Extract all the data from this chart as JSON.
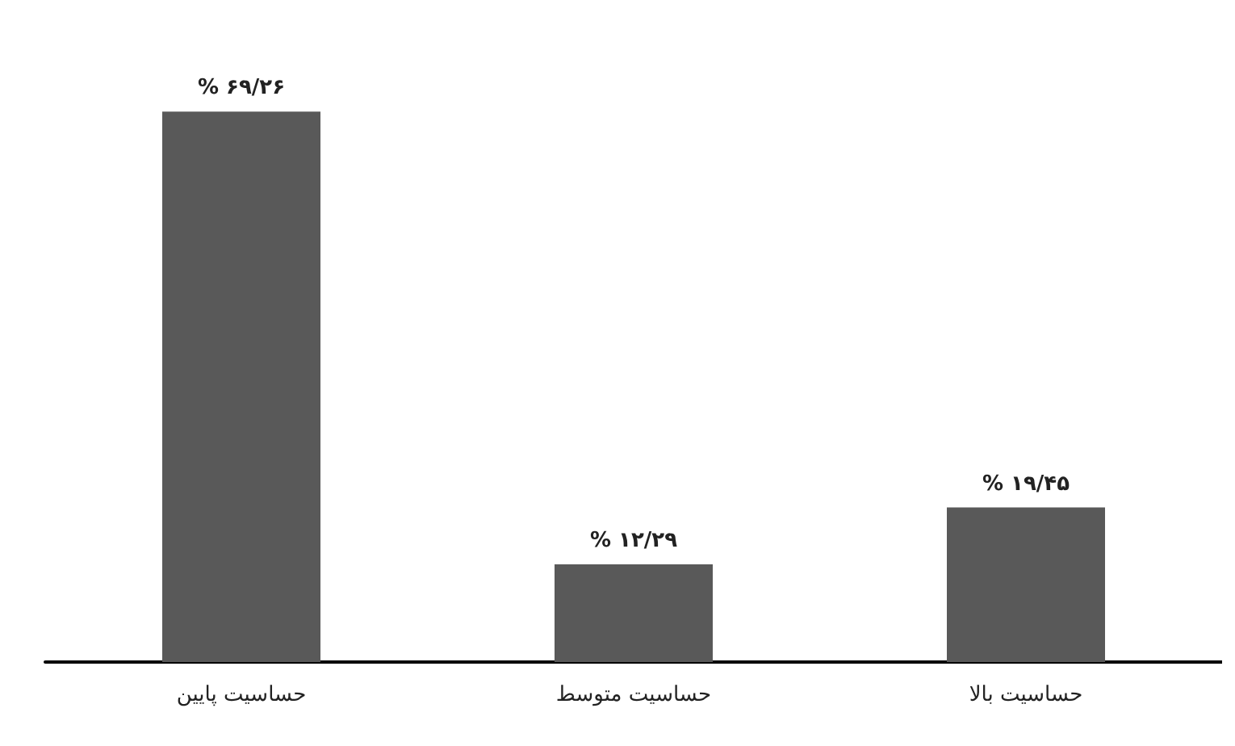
{
  "chart_data": {
    "type": "bar",
    "categories": [
      "حساسیت پایین",
      "حساسیت متوسط",
      "حساسیت بالا"
    ],
    "values": [
      69.26,
      12.29,
      19.45
    ],
    "color": "#595959",
    "value_labels": [
      "% ۶۹/۲۶",
      "% ۱۲/۲۹",
      "% ۱۹/۴۵"
    ]
  }
}
